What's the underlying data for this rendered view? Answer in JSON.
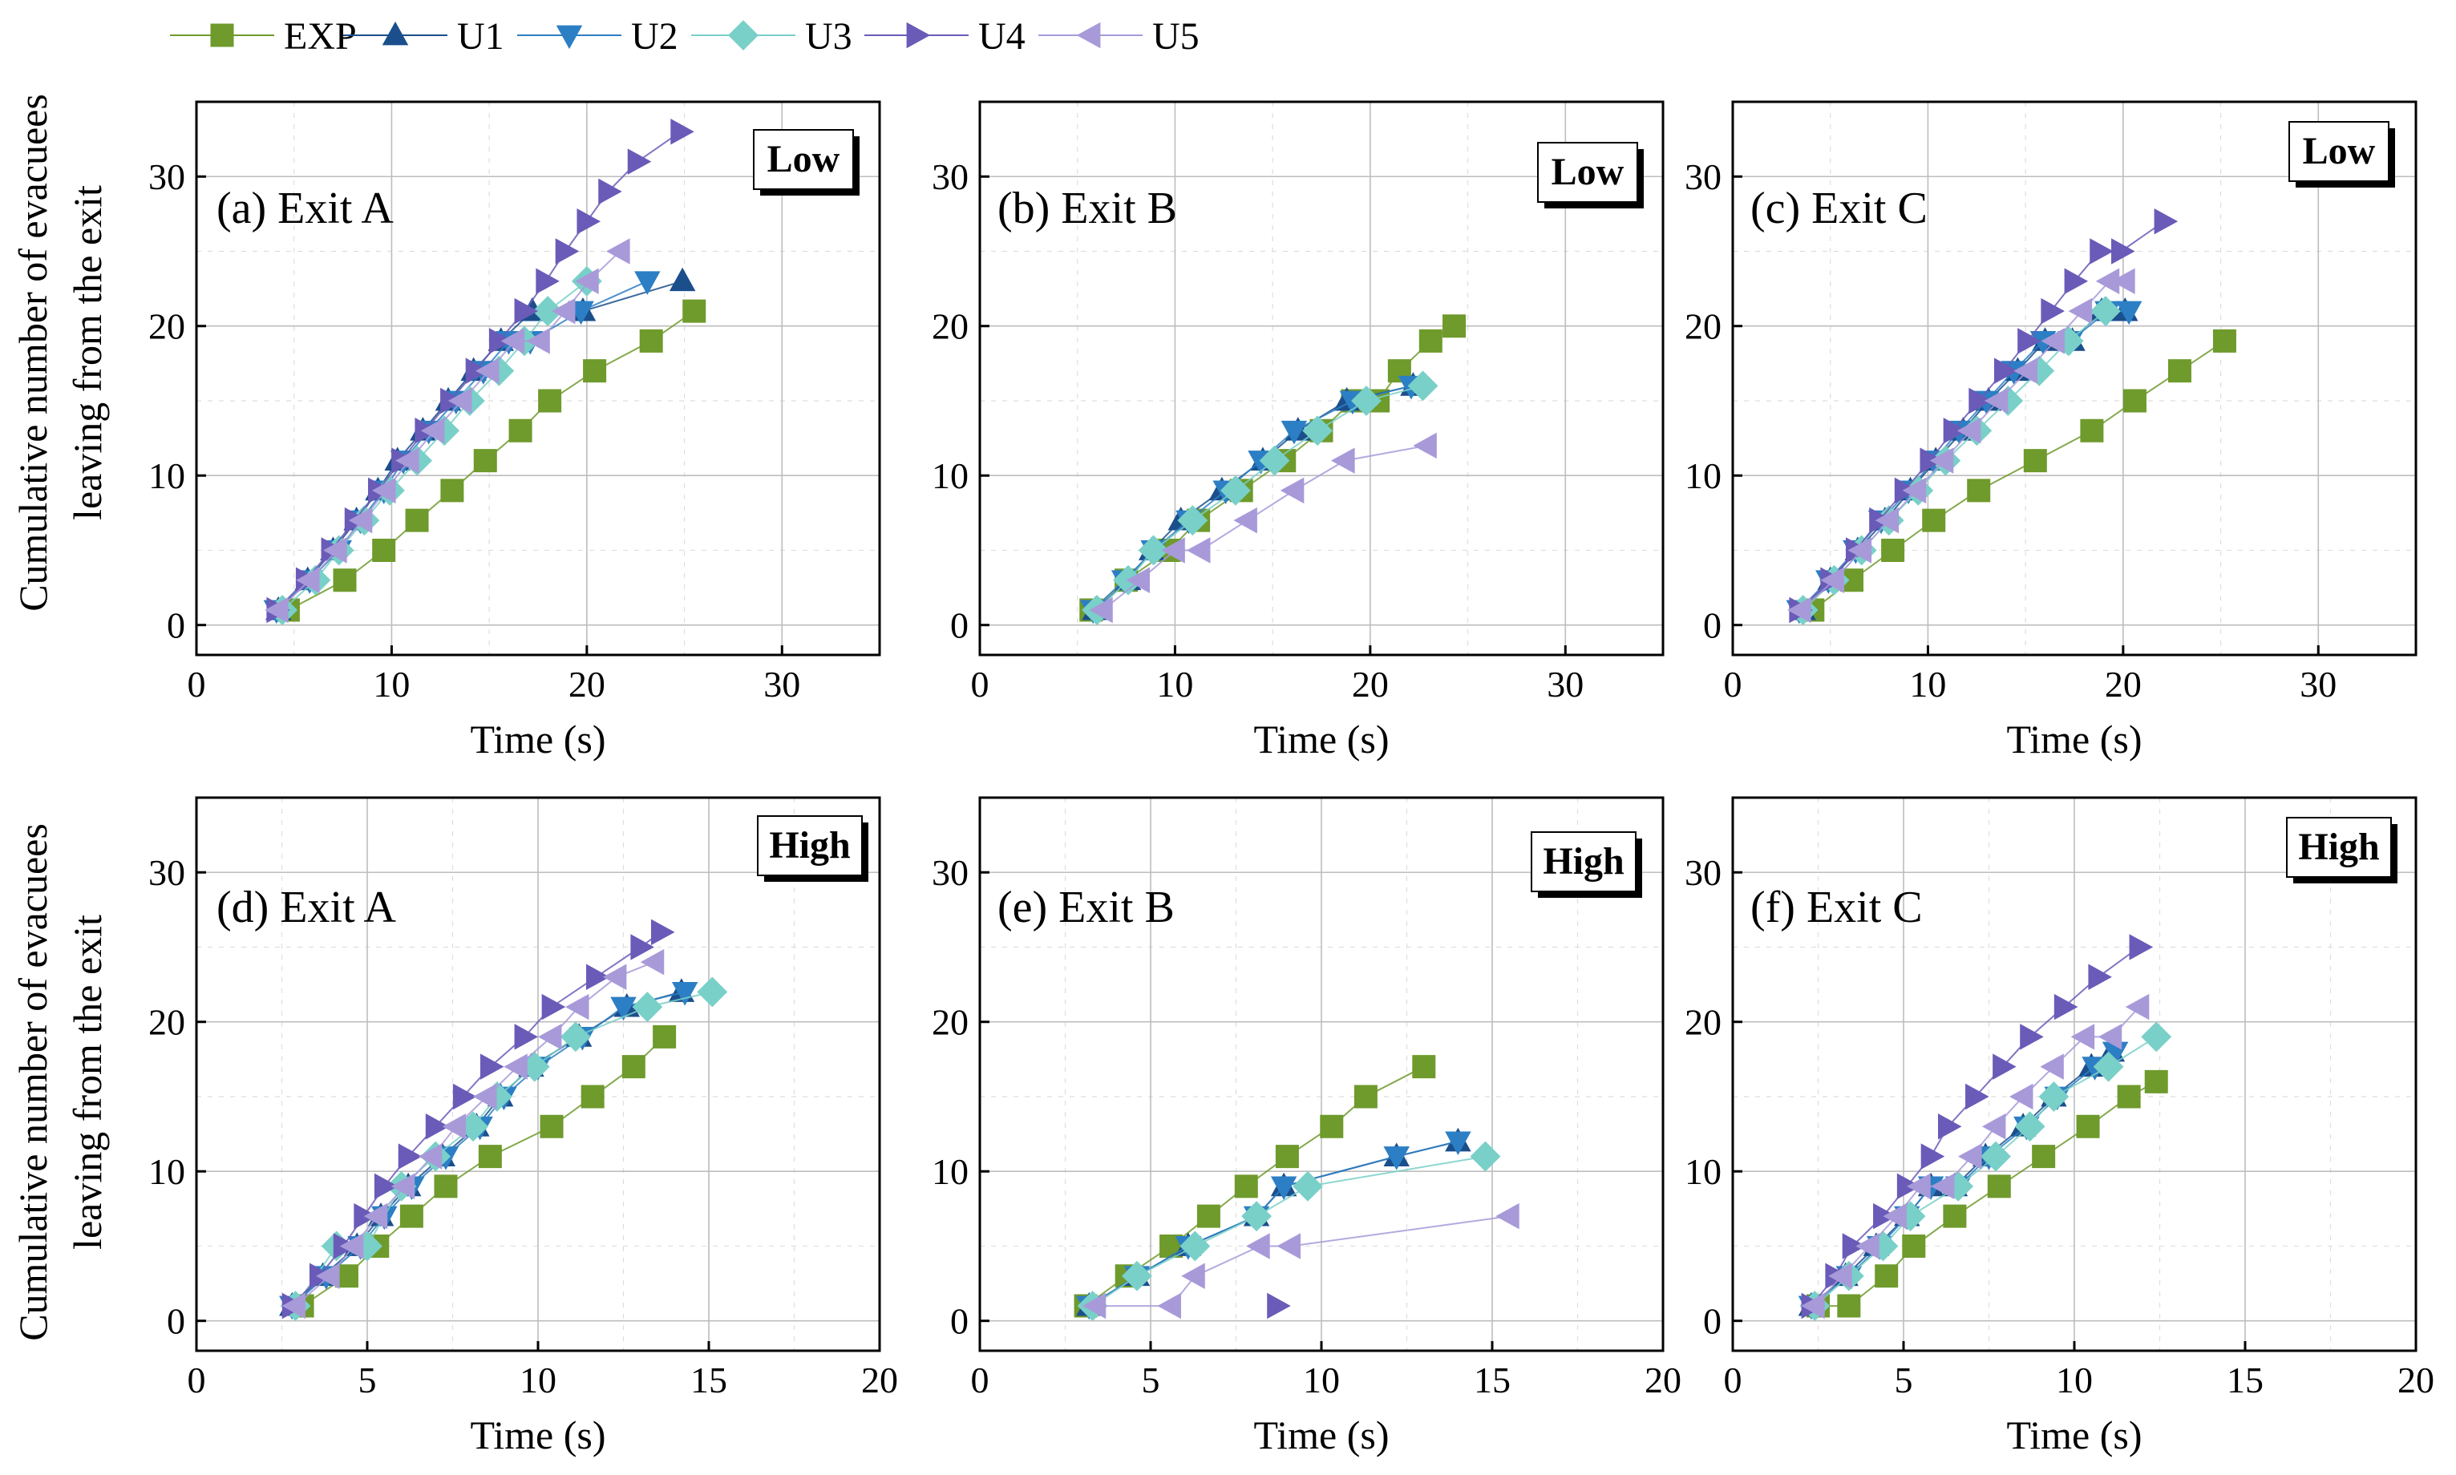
{
  "figure": {
    "ylabel_line1": "Cumulative number of evacuees",
    "ylabel_line2": "leaving from the exit"
  },
  "styles": {
    "EXP": {
      "color": "#6f9a2c",
      "fill": "#6f9a2c",
      "marker": "square"
    },
    "U1": {
      "color": "#1b4f8c",
      "fill": "#1b4f8c",
      "marker": "triangle-up"
    },
    "U2": {
      "color": "#2c7fc4",
      "fill": "#2c7fc4",
      "marker": "triangle-down"
    },
    "U3": {
      "color": "#79d0c8",
      "fill": "#79d0c8",
      "marker": "diamond"
    },
    "U4": {
      "color": "#6a5bb8",
      "fill": "#6a5bb8",
      "marker": "triangle-right"
    },
    "U5": {
      "color": "#a89ad9",
      "fill": "#a89ad9",
      "marker": "triangle-left"
    }
  },
  "legend": [
    "EXP",
    "U1",
    "U2",
    "U3",
    "U4",
    "U5"
  ],
  "chart_data": [
    {
      "type": "line",
      "panel": "a",
      "title": "(a) Exit A",
      "density": "Low",
      "xlabel": "Time (s)",
      "ylabel": "Cumulative number of evacuees leaving from the exit",
      "xlim": [
        0,
        35
      ],
      "ylim": [
        -2,
        35
      ],
      "xticks": [
        0,
        10,
        20,
        30
      ],
      "yticks": [
        0,
        10,
        20,
        30
      ],
      "grid": true,
      "series": [
        {
          "name": "EXP",
          "x": [
            4.7,
            7.6,
            9.6,
            11.3,
            13.1,
            14.8,
            16.6,
            18.1,
            20.4,
            23.3,
            25.5
          ],
          "y": [
            1,
            3,
            5,
            7,
            9,
            11,
            13,
            15,
            17,
            19,
            21
          ]
        },
        {
          "name": "U1",
          "x": [
            4.2,
            5.7,
            7.0,
            8.2,
            9.3,
            10.3,
            11.6,
            12.9,
            14.2,
            15.6,
            17.2,
            19.8,
            24.9
          ],
          "y": [
            1,
            3,
            5,
            7,
            9,
            11,
            13,
            15,
            17,
            19,
            21,
            21,
            23
          ]
        },
        {
          "name": "U2",
          "x": [
            4.1,
            5.8,
            7.3,
            8.4,
            9.6,
            10.6,
            11.9,
            13.3,
            14.7,
            16.0,
            17.1,
            19.7,
            23.1
          ],
          "y": [
            1,
            3,
            5,
            7,
            9,
            11,
            13,
            15,
            17,
            19,
            19,
            21,
            23
          ]
        },
        {
          "name": "U3",
          "x": [
            4.4,
            6.1,
            7.3,
            8.6,
            9.9,
            11.3,
            12.7,
            14.0,
            15.5,
            16.8,
            18.0,
            20.0
          ],
          "y": [
            1,
            3,
            5,
            7,
            9,
            11,
            13,
            15,
            17,
            19,
            21,
            23
          ]
        },
        {
          "name": "U4",
          "x": [
            4.1,
            5.6,
            6.9,
            8.1,
            9.3,
            10.5,
            11.7,
            13.0,
            14.3,
            15.5,
            16.8,
            17.9,
            18.9,
            20.0,
            21.1,
            22.6,
            24.8
          ],
          "y": [
            1,
            3,
            5,
            7,
            9,
            11,
            13,
            15,
            17,
            19,
            21,
            23,
            25,
            27,
            29,
            31,
            33
          ]
        },
        {
          "name": "U5",
          "x": [
            4.2,
            5.8,
            7.2,
            8.5,
            9.7,
            10.9,
            12.2,
            13.6,
            15.0,
            16.3,
            17.6,
            18.9,
            20.1,
            21.7
          ],
          "y": [
            1,
            3,
            5,
            7,
            9,
            11,
            13,
            15,
            17,
            19,
            19,
            21,
            23,
            25
          ]
        }
      ]
    },
    {
      "type": "line",
      "panel": "b",
      "title": "(b) Exit B",
      "density": "Low",
      "xlabel": "Time (s)",
      "ylabel": "",
      "xlim": [
        0,
        35
      ],
      "ylim": [
        -2,
        35
      ],
      "xticks": [
        0,
        10,
        20,
        30
      ],
      "yticks": [
        0,
        10,
        20,
        30
      ],
      "grid": true,
      "series": [
        {
          "name": "EXP",
          "x": [
            5.7,
            7.5,
            9.7,
            11.2,
            13.4,
            15.6,
            17.5,
            19.1,
            20.4,
            21.5,
            23.1,
            24.3
          ],
          "y": [
            1,
            3,
            5,
            7,
            9,
            11,
            13,
            15,
            15,
            17,
            19,
            20
          ]
        },
        {
          "name": "U1",
          "x": [
            5.9,
            7.6,
            8.8,
            10.3,
            12.4,
            14.5,
            16.3,
            18.8,
            22.2
          ],
          "y": [
            1,
            3,
            5,
            7,
            9,
            11,
            13,
            15,
            16
          ]
        },
        {
          "name": "U2",
          "x": [
            5.8,
            7.4,
            8.9,
            10.7,
            12.6,
            14.4,
            16.1,
            19.1,
            22.1
          ],
          "y": [
            1,
            3,
            5,
            7,
            9,
            11,
            13,
            15,
            16
          ]
        },
        {
          "name": "U3",
          "x": [
            6.0,
            7.6,
            8.9,
            10.9,
            13.1,
            15.1,
            17.3,
            19.8,
            22.7
          ],
          "y": [
            1,
            3,
            5,
            7,
            9,
            11,
            13,
            15,
            16
          ]
        },
        {
          "name": "U5",
          "x": [
            6.3,
            8.2,
            10.0,
            11.3,
            13.7,
            16.1,
            18.7,
            22.9
          ],
          "y": [
            1,
            3,
            5,
            5,
            7,
            9,
            11,
            12
          ]
        }
      ]
    },
    {
      "type": "line",
      "panel": "c",
      "title": "(c) Exit C",
      "density": "Low",
      "xlabel": "Time (s)",
      "ylabel": "",
      "xlim": [
        0,
        35
      ],
      "ylim": [
        -2,
        35
      ],
      "xticks": [
        0,
        10,
        20,
        30
      ],
      "yticks": [
        0,
        10,
        20,
        30
      ],
      "grid": true,
      "series": [
        {
          "name": "EXP",
          "x": [
            4.1,
            6.1,
            8.2,
            10.3,
            12.6,
            15.5,
            18.4,
            20.6,
            22.9,
            25.2
          ],
          "y": [
            1,
            3,
            5,
            7,
            9,
            11,
            13,
            15,
            17,
            19
          ]
        },
        {
          "name": "U1",
          "x": [
            3.6,
            5.0,
            6.4,
            7.8,
            9.1,
            10.4,
            11.8,
            13.1,
            14.6,
            16.0,
            17.4,
            18.9,
            20.1
          ],
          "y": [
            1,
            3,
            5,
            7,
            9,
            11,
            13,
            15,
            17,
            19,
            19,
            21,
            21
          ]
        },
        {
          "name": "U2",
          "x": [
            3.4,
            4.9,
            6.3,
            7.6,
            9.0,
            10.3,
            11.6,
            13.0,
            14.4,
            15.9,
            17.3,
            19.2,
            20.3
          ],
          "y": [
            1,
            3,
            5,
            7,
            9,
            11,
            13,
            15,
            17,
            19,
            19,
            21,
            21
          ]
        },
        {
          "name": "U3",
          "x": [
            3.6,
            5.2,
            6.6,
            8.0,
            9.5,
            10.9,
            12.5,
            14.1,
            15.7,
            17.2,
            19.1
          ],
          "y": [
            1,
            3,
            5,
            7,
            9,
            11,
            13,
            15,
            17,
            19,
            21
          ]
        },
        {
          "name": "U4",
          "x": [
            3.4,
            5.0,
            6.3,
            7.5,
            8.8,
            10.1,
            11.3,
            12.6,
            13.9,
            15.1,
            16.3,
            17.5,
            18.8,
            19.9,
            22.1
          ],
          "y": [
            1,
            3,
            5,
            7,
            9,
            11,
            13,
            15,
            17,
            19,
            21,
            23,
            25,
            25,
            27
          ]
        },
        {
          "name": "U5",
          "x": [
            3.5,
            5.2,
            6.6,
            8.0,
            9.4,
            10.8,
            12.2,
            13.6,
            15.1,
            16.5,
            17.9,
            19.3,
            20.1
          ],
          "y": [
            1,
            3,
            5,
            7,
            9,
            11,
            13,
            15,
            17,
            19,
            21,
            23,
            23
          ]
        }
      ]
    },
    {
      "type": "line",
      "panel": "d",
      "title": "(d) Exit A",
      "density": "High",
      "xlabel": "Time (s)",
      "ylabel": "Cumulative number of evacuees leaving from the exit",
      "xlim": [
        0,
        20
      ],
      "ylim": [
        -2,
        35
      ],
      "xticks": [
        0,
        5,
        10,
        15,
        20
      ],
      "yticks": [
        0,
        10,
        20,
        30
      ],
      "grid": true,
      "series": [
        {
          "name": "EXP",
          "x": [
            3.1,
            4.4,
            5.3,
            6.3,
            7.3,
            8.6,
            10.4,
            11.6,
            12.8,
            13.7
          ],
          "y": [
            1,
            3,
            5,
            7,
            9,
            11,
            13,
            15,
            17,
            19
          ]
        },
        {
          "name": "U1",
          "x": [
            2.8,
            3.7,
            4.7,
            5.4,
            6.2,
            7.2,
            8.2,
            8.9,
            9.8,
            11.2,
            12.6,
            14.2
          ],
          "y": [
            1,
            3,
            5,
            7,
            9,
            11,
            13,
            15,
            17,
            19,
            21,
            22
          ]
        },
        {
          "name": "U2",
          "x": [
            2.8,
            3.8,
            4.8,
            5.5,
            6.3,
            7.3,
            8.3,
            9.0,
            10.0,
            11.3,
            12.5,
            14.3
          ],
          "y": [
            1,
            3,
            5,
            7,
            9,
            11,
            13,
            15,
            17,
            19,
            21,
            22
          ]
        },
        {
          "name": "U3",
          "x": [
            2.9,
            4.1,
            5.0,
            6.0,
            7.0,
            8.1,
            8.8,
            9.9,
            11.1,
            13.2,
            15.1
          ],
          "y": [
            1,
            5,
            5,
            9,
            11,
            13,
            15,
            17,
            19,
            21,
            22
          ]
        },
        {
          "name": "U4",
          "x": [
            2.8,
            3.6,
            4.3,
            4.9,
            5.5,
            6.2,
            7.0,
            7.8,
            8.6,
            9.6,
            10.4,
            11.7,
            13.0,
            13.6
          ],
          "y": [
            1,
            3,
            5,
            7,
            9,
            11,
            13,
            15,
            17,
            19,
            21,
            23,
            25,
            26
          ]
        },
        {
          "name": "U5",
          "x": [
            2.9,
            3.9,
            4.6,
            5.3,
            6.1,
            6.9,
            7.6,
            8.5,
            9.4,
            10.4,
            11.2,
            12.3,
            13.4
          ],
          "y": [
            1,
            3,
            5,
            7,
            9,
            11,
            13,
            15,
            17,
            19,
            21,
            23,
            24
          ]
        }
      ]
    },
    {
      "type": "line",
      "panel": "e",
      "title": "(e) Exit B",
      "density": "High",
      "xlabel": "Time (s)",
      "ylabel": "",
      "xlim": [
        0,
        20
      ],
      "ylim": [
        -2,
        35
      ],
      "xticks": [
        0,
        5,
        10,
        15,
        20
      ],
      "yticks": [
        0,
        10,
        20,
        30
      ],
      "grid": true,
      "series": [
        {
          "name": "EXP",
          "x": [
            3.1,
            4.3,
            5.6,
            6.7,
            7.8,
            9.0,
            10.3,
            11.3,
            13.0
          ],
          "y": [
            1,
            3,
            5,
            7,
            9,
            11,
            13,
            15,
            17
          ]
        },
        {
          "name": "U1",
          "x": [
            3.2,
            4.6,
            6.1,
            8.1,
            8.9,
            12.2,
            14.0
          ],
          "y": [
            1,
            3,
            5,
            7,
            9,
            11,
            12
          ]
        },
        {
          "name": "U2",
          "x": [
            3.2,
            4.6,
            6.1,
            8.1,
            8.9,
            12.2,
            14.0
          ],
          "y": [
            1,
            3,
            5,
            7,
            9,
            11,
            12
          ]
        },
        {
          "name": "U3",
          "x": [
            3.3,
            4.6,
            6.3,
            8.1,
            9.6,
            14.8
          ],
          "y": [
            1,
            3,
            5,
            7,
            9,
            11
          ]
        },
        {
          "name": "U4",
          "x": [
            8.7
          ],
          "y": [
            1
          ]
        },
        {
          "name": "U5",
          "x": [
            3.4,
            5.6,
            6.3,
            8.2,
            9.1,
            15.5
          ],
          "y": [
            1,
            1,
            3,
            5,
            5,
            7
          ]
        }
      ]
    },
    {
      "type": "line",
      "panel": "f",
      "title": "(f) Exit C",
      "density": "High",
      "xlabel": "Time (s)",
      "ylabel": "",
      "xlim": [
        0,
        20
      ],
      "ylim": [
        -2,
        35
      ],
      "xticks": [
        0,
        5,
        10,
        15,
        20
      ],
      "yticks": [
        0,
        10,
        20,
        30
      ],
      "grid": true,
      "series": [
        {
          "name": "EXP",
          "x": [
            2.5,
            3.4,
            4.5,
            5.3,
            6.5,
            7.8,
            9.1,
            10.4,
            11.6,
            12.4
          ],
          "y": [
            1,
            1,
            3,
            5,
            7,
            9,
            11,
            13,
            15,
            16
          ]
        },
        {
          "name": "U1",
          "x": [
            2.3,
            3.3,
            4.2,
            5.1,
            5.8,
            6.5,
            7.4,
            8.5,
            9.4,
            10.5,
            11.1
          ],
          "y": [
            1,
            3,
            5,
            7,
            9,
            9,
            11,
            13,
            15,
            17,
            18
          ]
        },
        {
          "name": "U2",
          "x": [
            2.3,
            3.4,
            4.3,
            5.1,
            5.8,
            6.6,
            7.5,
            8.6,
            9.5,
            10.6,
            11.2
          ],
          "y": [
            1,
            3,
            5,
            7,
            9,
            9,
            11,
            13,
            15,
            17,
            18
          ]
        },
        {
          "name": "U3",
          "x": [
            2.4,
            3.4,
            4.4,
            5.2,
            6.6,
            7.7,
            8.7,
            9.4,
            11.0,
            12.4
          ],
          "y": [
            1,
            3,
            5,
            7,
            9,
            11,
            13,
            15,
            17,
            19
          ]
        },
        {
          "name": "U4",
          "x": [
            2.3,
            3.0,
            3.5,
            4.4,
            5.1,
            5.8,
            6.3,
            7.1,
            7.9,
            8.7,
            9.7,
            10.7,
            11.9
          ],
          "y": [
            1,
            3,
            5,
            7,
            9,
            11,
            13,
            15,
            17,
            19,
            21,
            23,
            25
          ]
        },
        {
          "name": "U5",
          "x": [
            2.4,
            3.2,
            4.0,
            4.8,
            5.5,
            6.2,
            7.0,
            7.7,
            8.5,
            9.4,
            10.3,
            11.1,
            11.9
          ],
          "y": [
            1,
            3,
            5,
            7,
            9,
            9,
            11,
            13,
            15,
            17,
            19,
            19,
            21
          ]
        }
      ]
    }
  ]
}
